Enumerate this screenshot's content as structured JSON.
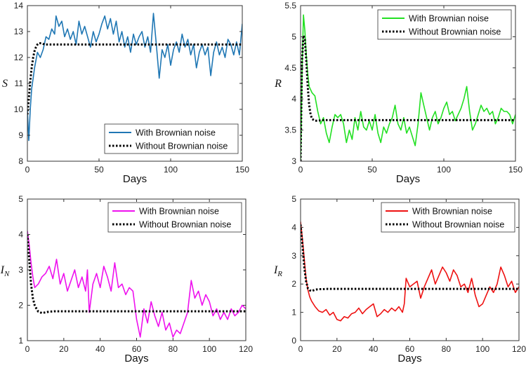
{
  "figure": {
    "xlabel": "Days",
    "legend_noise": "With Brownian noise",
    "legend_det": "Without Brownian noise"
  },
  "chart_data": [
    {
      "type": "line",
      "ylabel": "S",
      "xlabel": "Days",
      "xlim": [
        0,
        150
      ],
      "ylim": [
        8,
        14
      ],
      "xticks": [
        0,
        50,
        100,
        150
      ],
      "yticks": [
        8,
        9,
        10,
        11,
        12,
        13,
        14
      ],
      "legend_position": "bottom-right",
      "series": [
        {
          "name": "With Brownian noise",
          "color": "#1f77b4",
          "style": "solid",
          "x": [
            0,
            1,
            2,
            3,
            4,
            5,
            7,
            9,
            11,
            13,
            15,
            17,
            19,
            20,
            22,
            24,
            26,
            28,
            30,
            32,
            34,
            36,
            38,
            40,
            42,
            44,
            46,
            48,
            50,
            52,
            54,
            56,
            58,
            60,
            62,
            64,
            66,
            68,
            70,
            72,
            74,
            76,
            78,
            80,
            82,
            84,
            86,
            88,
            90,
            92,
            94,
            96,
            98,
            100,
            102,
            104,
            106,
            108,
            110,
            112,
            114,
            116,
            118,
            120,
            122,
            124,
            126,
            128,
            130,
            132,
            134,
            136,
            138,
            140,
            142,
            144,
            146,
            148,
            150
          ],
          "y": [
            10.0,
            8.8,
            10.0,
            10.8,
            11.2,
            11.6,
            12.2,
            12.0,
            12.3,
            12.8,
            12.7,
            13.1,
            12.9,
            13.6,
            13.2,
            13.4,
            12.8,
            13.1,
            12.7,
            13.0,
            12.5,
            13.4,
            12.9,
            13.2,
            12.8,
            12.4,
            13.0,
            12.6,
            12.9,
            13.3,
            13.6,
            13.1,
            13.5,
            12.9,
            13.4,
            12.6,
            13.0,
            12.4,
            12.8,
            12.2,
            12.9,
            12.5,
            12.8,
            13.0,
            12.4,
            12.8,
            12.2,
            13.7,
            12.5,
            11.2,
            12.3,
            12.0,
            12.5,
            11.7,
            12.3,
            12.6,
            12.2,
            12.9,
            12.4,
            12.7,
            12.1,
            12.5,
            11.6,
            12.2,
            12.5,
            12.1,
            12.4,
            11.3,
            12.2,
            12.6,
            12.1,
            12.4,
            12.0,
            12.7,
            12.5,
            12.1,
            12.6,
            12.1,
            13.3
          ]
        },
        {
          "name": "Without Brownian noise",
          "color": "#000000",
          "style": "dotted",
          "x": [
            0,
            1,
            2,
            3,
            4,
            5,
            6,
            7,
            8,
            10,
            12,
            15,
            20,
            30,
            40,
            60,
            80,
            100,
            120,
            140,
            150
          ],
          "y": [
            9.8,
            10.4,
            11.1,
            11.6,
            12.0,
            12.25,
            12.4,
            12.5,
            12.55,
            12.55,
            12.5,
            12.5,
            12.5,
            12.5,
            12.5,
            12.5,
            12.5,
            12.5,
            12.5,
            12.5,
            12.5
          ]
        }
      ]
    },
    {
      "type": "line",
      "ylabel": "R",
      "xlabel": "Days",
      "xlim": [
        0,
        150
      ],
      "ylim": [
        3,
        5.5
      ],
      "xticks": [
        0,
        50,
        100,
        150
      ],
      "yticks": [
        3,
        3.5,
        4,
        4.5,
        5,
        5.5
      ],
      "legend_position": "top-right",
      "series": [
        {
          "name": "With Brownian noise",
          "color": "#22e022",
          "style": "solid",
          "x": [
            0,
            0.5,
            1,
            2,
            3,
            4,
            5,
            6,
            8,
            10,
            12,
            14,
            16,
            18,
            20,
            22,
            24,
            26,
            28,
            30,
            32,
            34,
            36,
            38,
            40,
            42,
            44,
            46,
            48,
            50,
            52,
            54,
            56,
            58,
            60,
            62,
            64,
            66,
            68,
            70,
            72,
            74,
            76,
            78,
            80,
            82,
            84,
            86,
            88,
            90,
            92,
            94,
            96,
            98,
            100,
            102,
            104,
            106,
            108,
            110,
            112,
            114,
            116,
            118,
            120,
            122,
            124,
            126,
            128,
            130,
            132,
            134,
            136,
            138,
            140,
            142,
            144,
            146,
            148,
            150
          ],
          "y": [
            3.0,
            3.6,
            4.4,
            5.35,
            5.1,
            4.7,
            4.4,
            4.2,
            4.1,
            4.05,
            3.8,
            3.6,
            3.7,
            3.45,
            3.3,
            3.55,
            3.75,
            3.7,
            3.75,
            3.6,
            3.3,
            3.5,
            3.35,
            3.7,
            3.5,
            3.8,
            3.55,
            3.5,
            3.65,
            3.5,
            3.75,
            3.45,
            3.3,
            3.55,
            3.45,
            3.6,
            3.7,
            3.9,
            3.6,
            3.5,
            3.7,
            3.45,
            3.55,
            3.4,
            3.25,
            3.6,
            4.1,
            3.9,
            3.7,
            3.5,
            3.7,
            3.8,
            3.6,
            3.7,
            3.85,
            3.95,
            3.75,
            3.8,
            3.65,
            3.75,
            3.85,
            4.0,
            4.2,
            3.8,
            3.5,
            3.6,
            3.75,
            3.9,
            3.8,
            3.85,
            3.75,
            3.8,
            3.6,
            3.7,
            3.85,
            3.8,
            3.8,
            3.75,
            3.6,
            3.75
          ]
        },
        {
          "name": "Without Brownian noise",
          "color": "#000000",
          "style": "dotted",
          "x": [
            0,
            1,
            2,
            3,
            4,
            5,
            6,
            7,
            8,
            10,
            12,
            15,
            20,
            40,
            60,
            80,
            100,
            120,
            140,
            150
          ],
          "y": [
            3.0,
            4.6,
            5.02,
            4.95,
            4.6,
            4.2,
            3.9,
            3.75,
            3.68,
            3.65,
            3.65,
            3.66,
            3.66,
            3.66,
            3.66,
            3.66,
            3.66,
            3.66,
            3.66,
            3.66
          ]
        }
      ]
    },
    {
      "type": "line",
      "ylabel": "I",
      "ylabel_sub": "N",
      "xlabel": "Days",
      "xlim": [
        0,
        120
      ],
      "ylim": [
        1,
        5
      ],
      "xticks": [
        0,
        20,
        40,
        60,
        80,
        100,
        120
      ],
      "yticks": [
        1,
        2,
        3,
        4,
        5
      ],
      "legend_position": "top-right",
      "series": [
        {
          "name": "With Brownian noise",
          "color": "#ee11ee",
          "style": "solid",
          "x": [
            0,
            1,
            2,
            3,
            4,
            6,
            8,
            10,
            12,
            14,
            16,
            18,
            20,
            22,
            24,
            26,
            28,
            30,
            32,
            33,
            34,
            36,
            38,
            40,
            42,
            44,
            46,
            48,
            50,
            52,
            54,
            56,
            58,
            60,
            62,
            64,
            66,
            68,
            70,
            72,
            74,
            76,
            78,
            80,
            82,
            84,
            86,
            88,
            90,
            92,
            94,
            96,
            98,
            100,
            102,
            104,
            106,
            108,
            110,
            112,
            114,
            116,
            118,
            120
          ],
          "y": [
            4.1,
            3.7,
            3.2,
            2.8,
            2.5,
            2.6,
            2.8,
            2.9,
            3.1,
            2.75,
            3.3,
            2.6,
            2.9,
            2.4,
            2.7,
            3.0,
            2.5,
            2.8,
            2.4,
            3.0,
            1.8,
            2.6,
            2.9,
            2.5,
            3.1,
            2.8,
            2.4,
            3.2,
            2.5,
            2.6,
            2.3,
            2.5,
            2.4,
            1.6,
            1.1,
            1.9,
            1.5,
            2.1,
            1.7,
            1.4,
            1.8,
            1.3,
            1.5,
            1.1,
            1.3,
            1.2,
            1.5,
            1.8,
            2.7,
            2.2,
            2.4,
            2.0,
            2.3,
            2.1,
            1.7,
            1.9,
            1.6,
            1.8,
            1.6,
            1.9,
            1.7,
            1.8,
            2.0,
            1.9
          ]
        },
        {
          "name": "Without Brownian noise",
          "color": "#000000",
          "style": "dotted",
          "x": [
            0,
            1,
            2,
            3,
            4,
            5,
            6,
            8,
            10,
            12,
            15,
            20,
            30,
            40,
            60,
            80,
            100,
            120
          ],
          "y": [
            4.0,
            3.3,
            2.6,
            2.2,
            2.0,
            1.9,
            1.82,
            1.78,
            1.8,
            1.82,
            1.83,
            1.83,
            1.83,
            1.83,
            1.83,
            1.83,
            1.83,
            1.83
          ]
        }
      ]
    },
    {
      "type": "line",
      "ylabel": "I",
      "ylabel_sub": "R",
      "xlabel": "Days",
      "xlim": [
        0,
        120
      ],
      "ylim": [
        0,
        5
      ],
      "xticks": [
        0,
        20,
        40,
        60,
        80,
        100,
        120
      ],
      "yticks": [
        0,
        1,
        2,
        3,
        4,
        5
      ],
      "legend_position": "top-right",
      "series": [
        {
          "name": "With Brownian noise",
          "color": "#ee1111",
          "style": "solid",
          "x": [
            0,
            1,
            2,
            3,
            4,
            5,
            6,
            8,
            10,
            12,
            14,
            16,
            18,
            20,
            22,
            24,
            26,
            28,
            30,
            32,
            34,
            36,
            38,
            40,
            42,
            44,
            46,
            48,
            50,
            52,
            54,
            56,
            57,
            58,
            60,
            62,
            64,
            66,
            68,
            70,
            72,
            74,
            76,
            78,
            80,
            82,
            84,
            86,
            88,
            90,
            92,
            94,
            96,
            98,
            100,
            102,
            104,
            106,
            108,
            110,
            112,
            114,
            116,
            118,
            120
          ],
          "y": [
            4.2,
            3.6,
            2.9,
            2.2,
            1.8,
            1.55,
            1.4,
            1.2,
            1.05,
            1.0,
            1.1,
            0.9,
            1.0,
            0.75,
            0.7,
            0.85,
            0.8,
            0.95,
            1.0,
            1.15,
            0.95,
            1.1,
            1.2,
            1.3,
            0.85,
            0.95,
            1.1,
            1.0,
            1.15,
            1.05,
            1.2,
            1.0,
            1.3,
            2.2,
            1.9,
            2.0,
            2.1,
            1.5,
            1.9,
            2.2,
            2.5,
            2.0,
            2.3,
            2.6,
            2.4,
            2.1,
            2.5,
            2.3,
            1.9,
            2.0,
            1.7,
            2.2,
            1.6,
            1.2,
            1.3,
            1.6,
            1.9,
            1.7,
            2.0,
            2.6,
            2.3,
            1.9,
            2.1,
            1.7,
            1.9
          ]
        },
        {
          "name": "Without Brownian noise",
          "color": "#000000",
          "style": "dotted",
          "x": [
            0,
            1,
            2,
            3,
            4,
            5,
            6,
            8,
            10,
            12,
            15,
            20,
            30,
            40,
            60,
            80,
            100,
            120
          ],
          "y": [
            4.1,
            3.4,
            2.6,
            2.1,
            1.85,
            1.78,
            1.75,
            1.8,
            1.82,
            1.82,
            1.83,
            1.83,
            1.83,
            1.83,
            1.83,
            1.83,
            1.83,
            1.83
          ]
        }
      ]
    }
  ]
}
